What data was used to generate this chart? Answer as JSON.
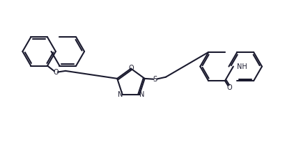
{
  "bg_color": "#ffffff",
  "line_color": "#1a1a2e",
  "line_width": 1.5,
  "figsize": [
    4.32,
    2.17
  ],
  "dpi": 100,
  "xlim": [
    0,
    100
  ],
  "ylim": [
    0,
    50
  ]
}
